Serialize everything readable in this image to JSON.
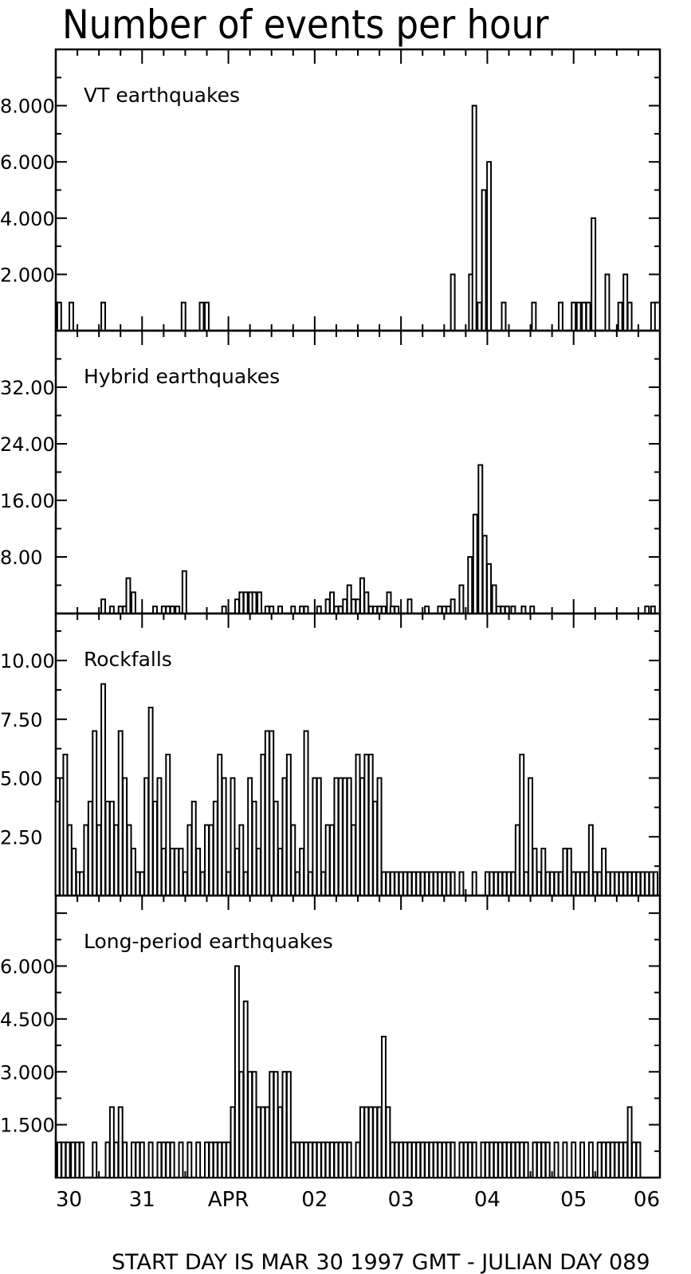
{
  "figure": {
    "title": "Number of events per hour",
    "footer": "START DAY IS MAR 30 1997 GMT   - JULIAN DAY 089",
    "x_tick_labels": [
      "30",
      "31",
      "APR",
      "02",
      "03",
      "04",
      "05",
      "06"
    ]
  },
  "chart_data": [
    {
      "type": "bar",
      "title": "VT earthquakes",
      "x_unit": "days since start (MAR 30 1997 GMT)",
      "xlim": [
        0,
        7
      ],
      "ylim": [
        0,
        10
      ],
      "y_tick_labels": [
        "2.000",
        "4.000",
        "6.000",
        "8.000"
      ],
      "y_tick_values": [
        2,
        4,
        6,
        8
      ],
      "x": [
        0.04,
        0.18,
        0.55,
        1.48,
        1.69,
        1.75,
        4.6,
        4.81,
        4.85,
        4.91,
        4.96,
        5.02,
        5.19,
        5.54,
        5.85,
        6.0,
        6.06,
        6.12,
        6.17,
        6.23,
        6.39,
        6.54,
        6.6,
        6.65,
        6.92
      ],
      "values": [
        1,
        1,
        1,
        1,
        1,
        1,
        2,
        2,
        8,
        1,
        5,
        6,
        1,
        1,
        1,
        1,
        1,
        1,
        1,
        4,
        2,
        1,
        2,
        1,
        1
      ]
    },
    {
      "type": "bar",
      "title": "Hybrid earthquakes",
      "x_unit": "days since start (MAR 30 1997 GMT)",
      "xlim": [
        0,
        7
      ],
      "ylim": [
        0,
        40
      ],
      "y_tick_labels": [
        "8.00",
        "16.00",
        "24.00",
        "32.00"
      ],
      "y_tick_values": [
        8,
        16,
        24,
        32
      ],
      "x": [
        0.55,
        0.65,
        0.75,
        0.8,
        0.84,
        0.9,
        1.15,
        1.25,
        1.3,
        1.35,
        1.41,
        1.49,
        1.95,
        2.1,
        2.15,
        2.2,
        2.26,
        2.3,
        2.36,
        2.45,
        2.5,
        2.6,
        2.75,
        2.85,
        2.9,
        3.05,
        3.15,
        3.2,
        3.25,
        3.3,
        3.35,
        3.4,
        3.45,
        3.5,
        3.55,
        3.6,
        3.65,
        3.7,
        3.75,
        3.8,
        3.86,
        3.9,
        3.95,
        4.1,
        4.3,
        4.45,
        4.5,
        4.55,
        4.6,
        4.7,
        4.8,
        4.86,
        4.92,
        4.97,
        5.02,
        5.08,
        5.13,
        5.18,
        5.23,
        5.3,
        5.42,
        5.52,
        6.85,
        6.92
      ],
      "values": [
        2,
        1,
        1,
        1,
        5,
        3,
        1,
        1,
        1,
        1,
        1,
        6,
        1,
        2,
        3,
        3,
        3,
        3,
        3,
        1,
        1,
        1,
        1,
        1,
        1,
        1,
        2,
        3,
        1,
        1,
        2,
        4,
        2,
        2,
        5,
        3,
        1,
        1,
        1,
        1,
        3,
        1,
        1,
        2,
        1,
        1,
        1,
        1,
        2,
        4,
        8,
        14,
        21,
        11,
        7,
        4,
        1,
        1,
        1,
        1,
        1,
        1,
        1,
        1
      ]
    },
    {
      "type": "bar",
      "title": "Rockfalls",
      "x_unit": "days since start (MAR 30 1997 GMT)",
      "xlim": [
        0,
        7
      ],
      "ylim": [
        0,
        12
      ],
      "y_tick_labels": [
        "2.50",
        "5.00",
        "7.50",
        "10.00"
      ],
      "y_tick_values": [
        2.5,
        5,
        7.5,
        10
      ],
      "x": [
        0.02,
        0.07,
        0.11,
        0.16,
        0.21,
        0.26,
        0.3,
        0.35,
        0.4,
        0.45,
        0.5,
        0.55,
        0.6,
        0.65,
        0.7,
        0.75,
        0.8,
        0.85,
        0.9,
        0.95,
        1.0,
        1.05,
        1.1,
        1.15,
        1.2,
        1.25,
        1.3,
        1.35,
        1.4,
        1.45,
        1.5,
        1.55,
        1.6,
        1.65,
        1.7,
        1.75,
        1.8,
        1.85,
        1.9,
        1.95,
        2.0,
        2.05,
        2.1,
        2.15,
        2.2,
        2.25,
        2.3,
        2.35,
        2.4,
        2.45,
        2.5,
        2.55,
        2.6,
        2.65,
        2.7,
        2.75,
        2.8,
        2.85,
        2.9,
        2.95,
        3.0,
        3.05,
        3.1,
        3.15,
        3.2,
        3.25,
        3.3,
        3.35,
        3.4,
        3.45,
        3.5,
        3.55,
        3.6,
        3.65,
        3.7,
        3.75,
        3.8,
        3.85,
        3.9,
        3.95,
        4.0,
        4.05,
        4.1,
        4.15,
        4.2,
        4.25,
        4.3,
        4.35,
        4.4,
        4.45,
        4.5,
        4.55,
        4.6,
        4.7,
        4.85,
        5.0,
        5.05,
        5.1,
        5.15,
        5.2,
        5.25,
        5.3,
        5.35,
        5.4,
        5.45,
        5.5,
        5.55,
        5.6,
        5.65,
        5.7,
        5.75,
        5.8,
        5.85,
        5.9,
        5.95,
        6.0,
        6.05,
        6.1,
        6.15,
        6.2,
        6.25,
        6.3,
        6.35,
        6.4,
        6.45,
        6.5,
        6.55,
        6.6,
        6.65,
        6.7,
        6.75,
        6.8,
        6.85,
        6.9,
        6.95
      ],
      "values": [
        4,
        5,
        6,
        3,
        2,
        1,
        1,
        3,
        4,
        7,
        3,
        9,
        4,
        4,
        3,
        7,
        5,
        3,
        2,
        1,
        1,
        5,
        8,
        4,
        5,
        2,
        6,
        2,
        2,
        2,
        1,
        3,
        4,
        2,
        1,
        3,
        3,
        4,
        6,
        5,
        1,
        5,
        2,
        3,
        1,
        5,
        4,
        2,
        6,
        7,
        7,
        4,
        2,
        5,
        6,
        3,
        1,
        2,
        7,
        1,
        5,
        5,
        1,
        3,
        3,
        5,
        5,
        5,
        5,
        3,
        6,
        5,
        6,
        6,
        4,
        5,
        1,
        1,
        1,
        1,
        1,
        1,
        1,
        1,
        1,
        1,
        1,
        1,
        1,
        1,
        1,
        1,
        1,
        1,
        1,
        1,
        1,
        1,
        1,
        1,
        1,
        1,
        3,
        6,
        1,
        5,
        2,
        1,
        2,
        1,
        1,
        1,
        1,
        2,
        2,
        1,
        1,
        1,
        1,
        3,
        1,
        1,
        2,
        1,
        1,
        1,
        1,
        1,
        1,
        1,
        1,
        1,
        1,
        1,
        1
      ]
    },
    {
      "type": "bar",
      "title": "Long-period earthquakes",
      "x_unit": "days since start (MAR 30 1997 GMT)",
      "xlim": [
        0,
        7
      ],
      "ylim": [
        0,
        8
      ],
      "y_tick_labels": [
        "1.500",
        "3.000",
        "4.500",
        "6.000"
      ],
      "y_tick_values": [
        1.5,
        3,
        4.5,
        6
      ],
      "x": [
        0.04,
        0.09,
        0.14,
        0.2,
        0.25,
        0.3,
        0.45,
        0.6,
        0.65,
        0.7,
        0.75,
        0.8,
        0.9,
        0.95,
        1.0,
        1.1,
        1.2,
        1.25,
        1.3,
        1.35,
        1.45,
        1.55,
        1.65,
        1.75,
        1.8,
        1.85,
        1.9,
        1.95,
        2.0,
        2.05,
        2.1,
        2.15,
        2.2,
        2.25,
        2.3,
        2.35,
        2.4,
        2.45,
        2.5,
        2.55,
        2.6,
        2.65,
        2.7,
        2.75,
        2.8,
        2.85,
        2.9,
        2.95,
        3.0,
        3.05,
        3.1,
        3.15,
        3.2,
        3.25,
        3.3,
        3.35,
        3.4,
        3.5,
        3.55,
        3.6,
        3.65,
        3.7,
        3.75,
        3.8,
        3.85,
        3.9,
        3.95,
        4.0,
        4.05,
        4.1,
        4.15,
        4.2,
        4.25,
        4.3,
        4.35,
        4.4,
        4.45,
        4.5,
        4.55,
        4.6,
        4.7,
        4.75,
        4.8,
        4.85,
        4.95,
        5.0,
        5.05,
        5.1,
        5.15,
        5.2,
        5.25,
        5.3,
        5.35,
        5.4,
        5.45,
        5.55,
        5.6,
        5.65,
        5.7,
        5.8,
        5.9,
        6.0,
        6.1,
        6.2,
        6.3,
        6.35,
        6.4,
        6.45,
        6.5,
        6.55,
        6.6,
        6.65,
        6.7,
        6.75
      ],
      "values": [
        1,
        1,
        1,
        1,
        1,
        1,
        1,
        1,
        2,
        1,
        2,
        1,
        1,
        1,
        1,
        1,
        1,
        1,
        1,
        1,
        1,
        1,
        1,
        1,
        1,
        1,
        1,
        1,
        1,
        2,
        6,
        3,
        5,
        3,
        3,
        2,
        2,
        2,
        3,
        3,
        2,
        3,
        3,
        1,
        1,
        1,
        1,
        1,
        1,
        1,
        1,
        1,
        1,
        1,
        1,
        1,
        1,
        1,
        2,
        2,
        2,
        2,
        2,
        4,
        2,
        1,
        1,
        1,
        1,
        1,
        1,
        1,
        1,
        1,
        1,
        1,
        1,
        1,
        1,
        1,
        1,
        1,
        1,
        1,
        1,
        1,
        1,
        1,
        1,
        1,
        1,
        1,
        1,
        1,
        1,
        1,
        1,
        1,
        1,
        1,
        1,
        1,
        1,
        1,
        1,
        1,
        1,
        1,
        1,
        1,
        1,
        2,
        1,
        1
      ]
    }
  ]
}
